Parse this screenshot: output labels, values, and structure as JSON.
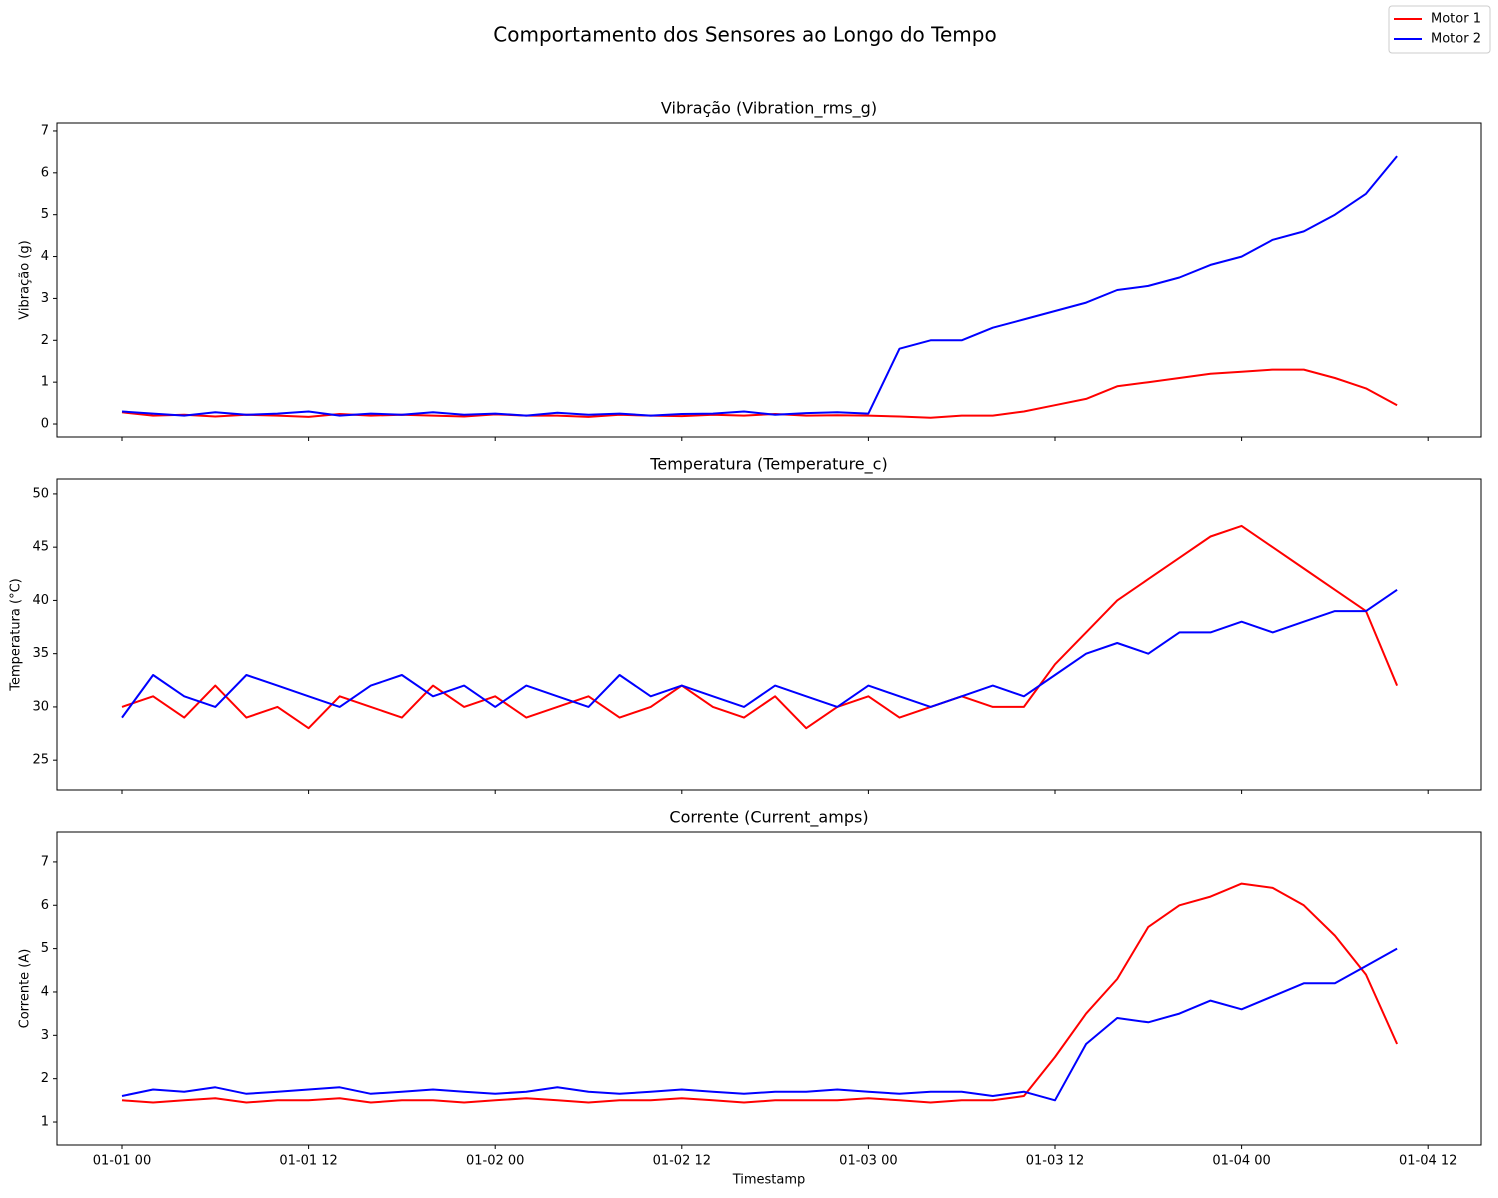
{
  "title": "Comportamento dos Sensores ao Longo do Tempo",
  "legend": "upper right",
  "chart_data": [
    {
      "type": "line",
      "title": "Vibração (Vibration_rms_g)",
      "y_label": "Vibração (g)",
      "x": [
        "01-01 00",
        "01-01 02",
        "01-01 04",
        "01-01 06",
        "01-01 08",
        "01-01 10",
        "01-01 12",
        "01-01 14",
        "01-01 16",
        "01-01 18",
        "01-01 20",
        "01-01 22",
        "01-02 00",
        "01-02 02",
        "01-02 04",
        "01-02 06",
        "01-02 08",
        "01-02 10",
        "01-02 12",
        "01-02 14",
        "01-02 16",
        "01-02 18",
        "01-02 20",
        "01-02 22",
        "01-03 00",
        "01-03 02",
        "01-03 04",
        "01-03 06",
        "01-03 08",
        "01-03 10",
        "01-03 12",
        "01-03 14",
        "01-03 16",
        "01-03 18",
        "01-03 20",
        "01-03 22",
        "01-04 00",
        "01-04 02",
        "01-04 04",
        "01-04 06",
        "01-04 08",
        "01-04 10"
      ],
      "series": [
        {
          "name": "Motor 1",
          "color": "#ff0000",
          "values": [
            0.28,
            0.2,
            0.22,
            0.18,
            0.22,
            0.2,
            0.17,
            0.24,
            0.2,
            0.22,
            0.2,
            0.18,
            0.23,
            0.2,
            0.2,
            0.17,
            0.22,
            0.2,
            0.19,
            0.22,
            0.2,
            0.24,
            0.2,
            0.21,
            0.2,
            0.18,
            0.15,
            0.2,
            0.2,
            0.3,
            0.45,
            0.6,
            0.9,
            1.0,
            1.1,
            1.2,
            1.25,
            1.3,
            1.3,
            1.1,
            0.85,
            0.45
          ]
        },
        {
          "name": "Motor 2",
          "color": "#0000ff",
          "values": [
            0.3,
            0.25,
            0.2,
            0.28,
            0.22,
            0.25,
            0.3,
            0.2,
            0.25,
            0.22,
            0.28,
            0.22,
            0.25,
            0.2,
            0.27,
            0.22,
            0.25,
            0.2,
            0.24,
            0.25,
            0.3,
            0.22,
            0.26,
            0.28,
            0.25,
            1.8,
            2.0,
            2.0,
            2.3,
            2.5,
            2.7,
            2.9,
            3.2,
            3.3,
            3.5,
            3.8,
            4.0,
            4.4,
            4.6,
            5.0,
            5.5,
            6.4
          ]
        }
      ],
      "ylim": [
        -0.31,
        7.19
      ],
      "yticks": [
        0,
        1,
        2,
        3,
        4,
        5,
        6,
        7
      ]
    },
    {
      "type": "line",
      "title": "Temperatura (Temperature_c)",
      "y_label": "Temperatura (°C)",
      "x": [
        "01-01 00",
        "01-01 02",
        "01-01 04",
        "01-01 06",
        "01-01 08",
        "01-01 10",
        "01-01 12",
        "01-01 14",
        "01-01 16",
        "01-01 18",
        "01-01 20",
        "01-01 22",
        "01-02 00",
        "01-02 02",
        "01-02 04",
        "01-02 06",
        "01-02 08",
        "01-02 10",
        "01-02 12",
        "01-02 14",
        "01-02 16",
        "01-02 18",
        "01-02 20",
        "01-02 22",
        "01-03 00",
        "01-03 02",
        "01-03 04",
        "01-03 06",
        "01-03 08",
        "01-03 10",
        "01-03 12",
        "01-03 14",
        "01-03 16",
        "01-03 18",
        "01-03 20",
        "01-03 22",
        "01-04 00",
        "01-04 02",
        "01-04 04",
        "01-04 06",
        "01-04 08",
        "01-04 10"
      ],
      "series": [
        {
          "name": "Motor 1",
          "color": "#ff0000",
          "values": [
            30,
            31,
            29,
            32,
            29,
            30,
            28,
            31,
            30,
            29,
            32,
            30,
            31,
            29,
            30,
            31,
            29,
            30,
            32,
            30,
            29,
            31,
            28,
            30,
            31,
            29,
            30,
            31,
            30,
            30,
            34,
            37,
            40,
            42,
            44,
            46,
            47,
            45,
            43,
            41,
            39,
            32
          ]
        },
        {
          "name": "Motor 2",
          "color": "#0000ff",
          "values": [
            29,
            33,
            31,
            30,
            33,
            32,
            31,
            30,
            32,
            33,
            31,
            32,
            30,
            32,
            31,
            30,
            33,
            31,
            32,
            31,
            30,
            32,
            31,
            30,
            32,
            31,
            30,
            31,
            32,
            31,
            33,
            35,
            36,
            35,
            37,
            37,
            38,
            37,
            38,
            39,
            39,
            41
          ]
        }
      ],
      "ylim": [
        22.2,
        51.4
      ],
      "yticks": [
        25,
        30,
        35,
        40,
        45,
        50
      ]
    },
    {
      "type": "line",
      "title": "Corrente (Current_amps)",
      "y_label": "Corrente (A)",
      "x_label": "Timestamp",
      "x": [
        "01-01 00",
        "01-01 02",
        "01-01 04",
        "01-01 06",
        "01-01 08",
        "01-01 10",
        "01-01 12",
        "01-01 14",
        "01-01 16",
        "01-01 18",
        "01-01 20",
        "01-01 22",
        "01-02 00",
        "01-02 02",
        "01-02 04",
        "01-02 06",
        "01-02 08",
        "01-02 10",
        "01-02 12",
        "01-02 14",
        "01-02 16",
        "01-02 18",
        "01-02 20",
        "01-02 22",
        "01-03 00",
        "01-03 02",
        "01-03 04",
        "01-03 06",
        "01-03 08",
        "01-03 10",
        "01-03 12",
        "01-03 14",
        "01-03 16",
        "01-03 18",
        "01-03 20",
        "01-03 22",
        "01-04 00",
        "01-04 02",
        "01-04 04",
        "01-04 06",
        "01-04 08",
        "01-04 10"
      ],
      "series": [
        {
          "name": "Motor 1",
          "color": "#ff0000",
          "values": [
            1.5,
            1.45,
            1.5,
            1.55,
            1.45,
            1.5,
            1.5,
            1.55,
            1.45,
            1.5,
            1.5,
            1.45,
            1.5,
            1.55,
            1.5,
            1.45,
            1.5,
            1.5,
            1.55,
            1.5,
            1.45,
            1.5,
            1.5,
            1.5,
            1.55,
            1.5,
            1.45,
            1.5,
            1.5,
            1.6,
            2.5,
            3.5,
            4.3,
            5.5,
            6.0,
            6.2,
            6.5,
            6.4,
            6.0,
            5.3,
            4.4,
            2.8
          ]
        },
        {
          "name": "Motor 2",
          "color": "#0000ff",
          "values": [
            1.6,
            1.75,
            1.7,
            1.8,
            1.65,
            1.7,
            1.75,
            1.8,
            1.65,
            1.7,
            1.75,
            1.7,
            1.65,
            1.7,
            1.8,
            1.7,
            1.65,
            1.7,
            1.75,
            1.7,
            1.65,
            1.7,
            1.7,
            1.75,
            1.7,
            1.65,
            1.7,
            1.7,
            1.6,
            1.7,
            1.5,
            2.8,
            3.4,
            3.3,
            3.5,
            3.8,
            3.6,
            3.9,
            4.2,
            4.2,
            4.6,
            5.0
          ]
        }
      ],
      "ylim": [
        0.47,
        7.69
      ],
      "yticks": [
        1,
        2,
        3,
        4,
        5,
        6,
        7
      ],
      "xticks": [
        "01-01 00",
        "01-01 12",
        "01-02 00",
        "01-02 12",
        "01-03 00",
        "01-03 12",
        "01-04 00",
        "01-04 12"
      ]
    }
  ]
}
